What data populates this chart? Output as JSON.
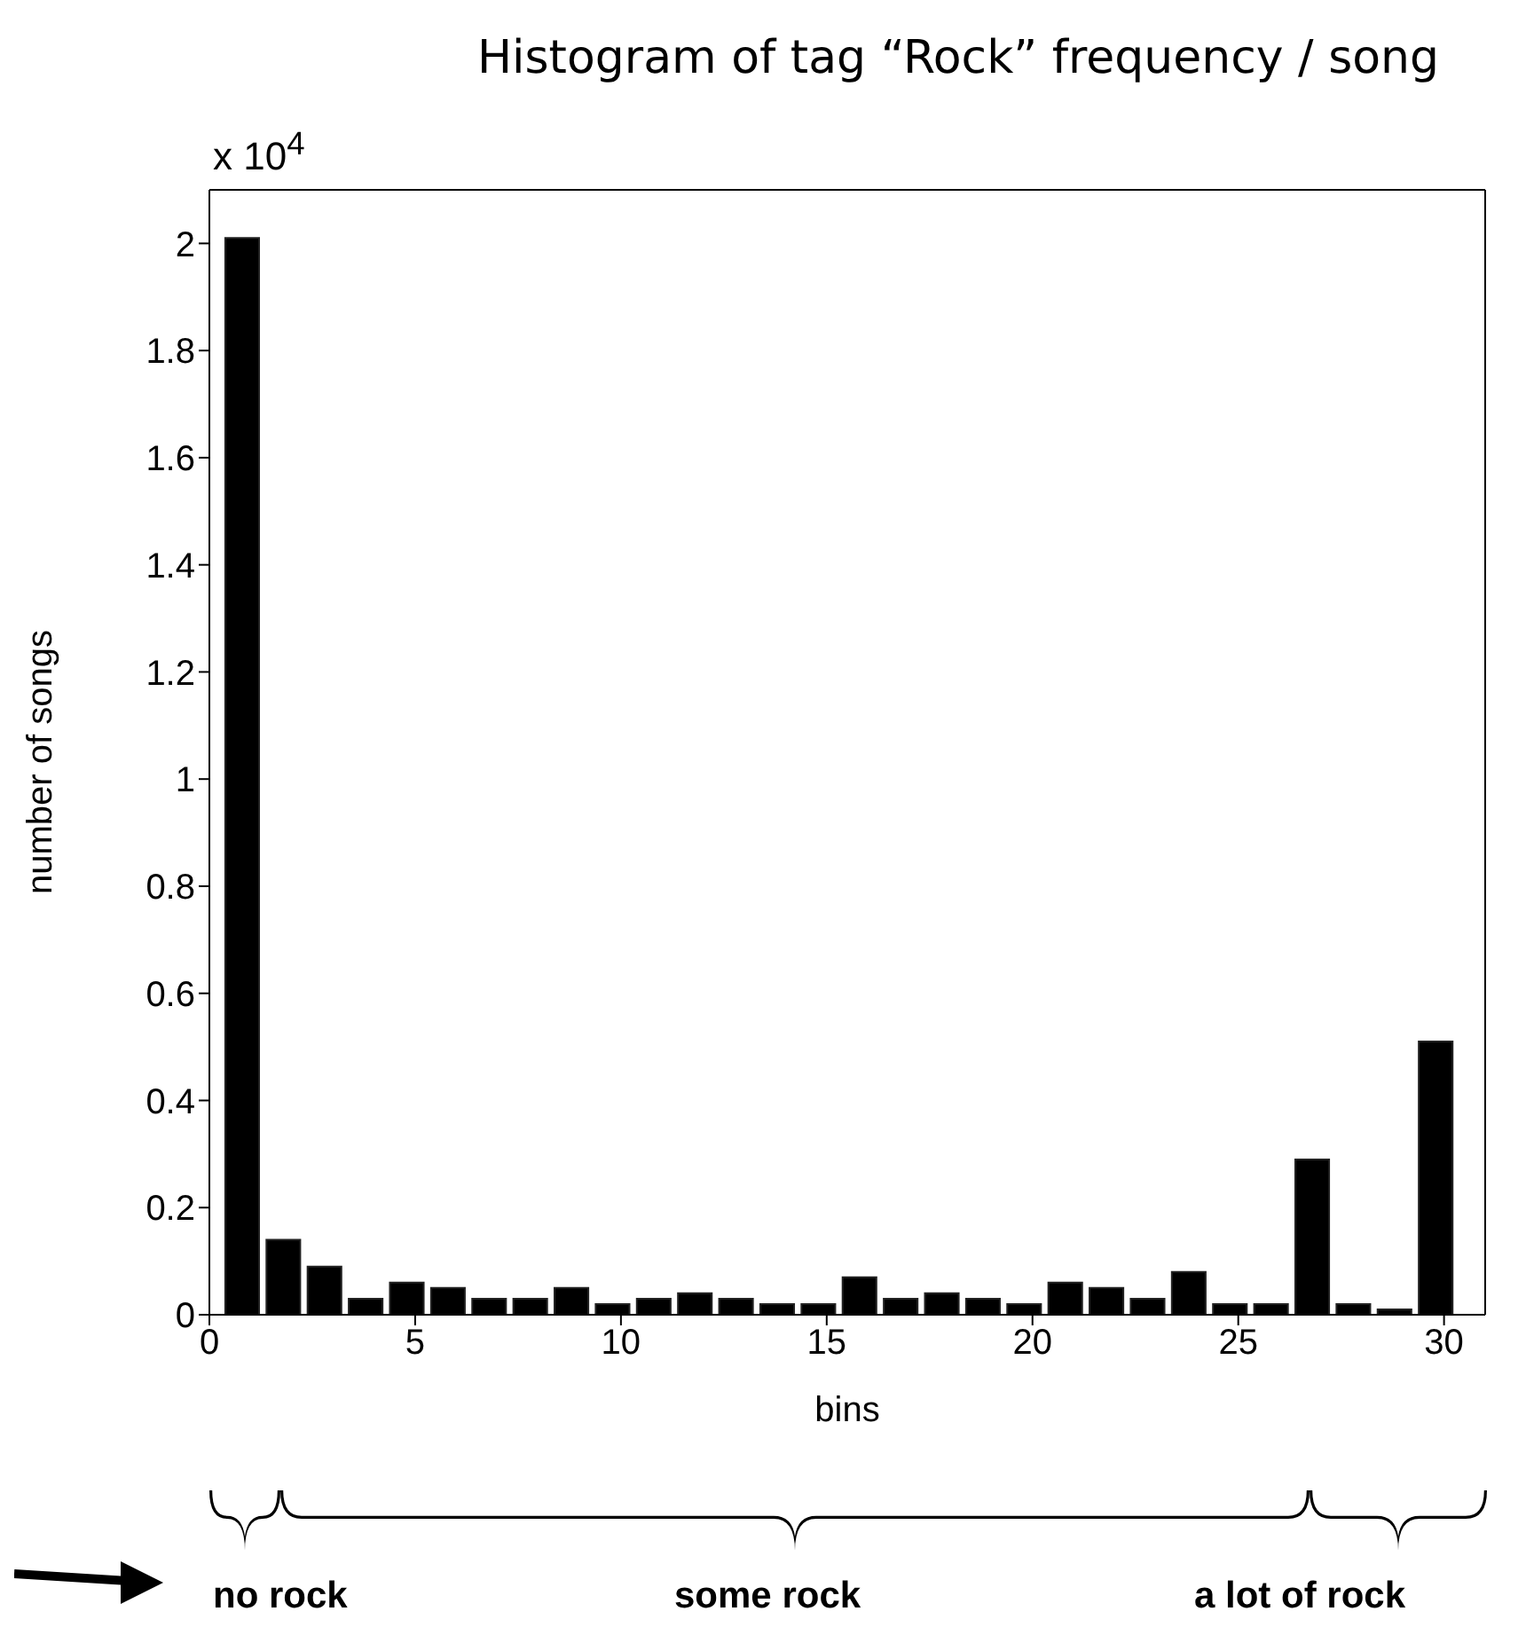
{
  "chart_data": {
    "type": "histogram",
    "title": "Histogram of tag “Rock” frequency / song",
    "xlabel": "bins",
    "ylabel": "number of songs",
    "bins": [
      0.3,
      1.3,
      2.3,
      3.3,
      4.3,
      5.3,
      6.3,
      7.3,
      8.3,
      9.3,
      10.3,
      11.3,
      12.3,
      13.3,
      14.3,
      15.3,
      16.3,
      17.3,
      18.3,
      19.3,
      20.3,
      21.3,
      22.3,
      23.3,
      24.3,
      25.3,
      26.3,
      27.3,
      28.3,
      29.3,
      30.3
    ],
    "values": [
      2.01,
      0.14,
      0.09,
      0.03,
      0.06,
      0.05,
      0.03,
      0.03,
      0.05,
      0.02,
      0.03,
      0.04,
      0.03,
      0.02,
      0.02,
      0.07,
      0.03,
      0.04,
      0.03,
      0.02,
      0.06,
      0.05,
      0.03,
      0.08,
      0.02,
      0.02,
      0.29,
      0.02,
      0.01,
      0.51
    ],
    "color": "#000000",
    "xlim": [
      0,
      31
    ],
    "xticks": [
      0,
      5,
      10,
      15,
      20,
      25,
      30
    ],
    "ylim": [
      0,
      2.1
    ],
    "yticks": [
      0,
      0.2,
      0.4,
      0.6,
      0.8,
      1,
      1.2,
      1.4,
      1.6,
      1.8,
      2
    ],
    "annotations": [
      "x 10$^{4}$",
      "no rock",
      "some rock",
      "a lot of rock"
    ]
  }
}
